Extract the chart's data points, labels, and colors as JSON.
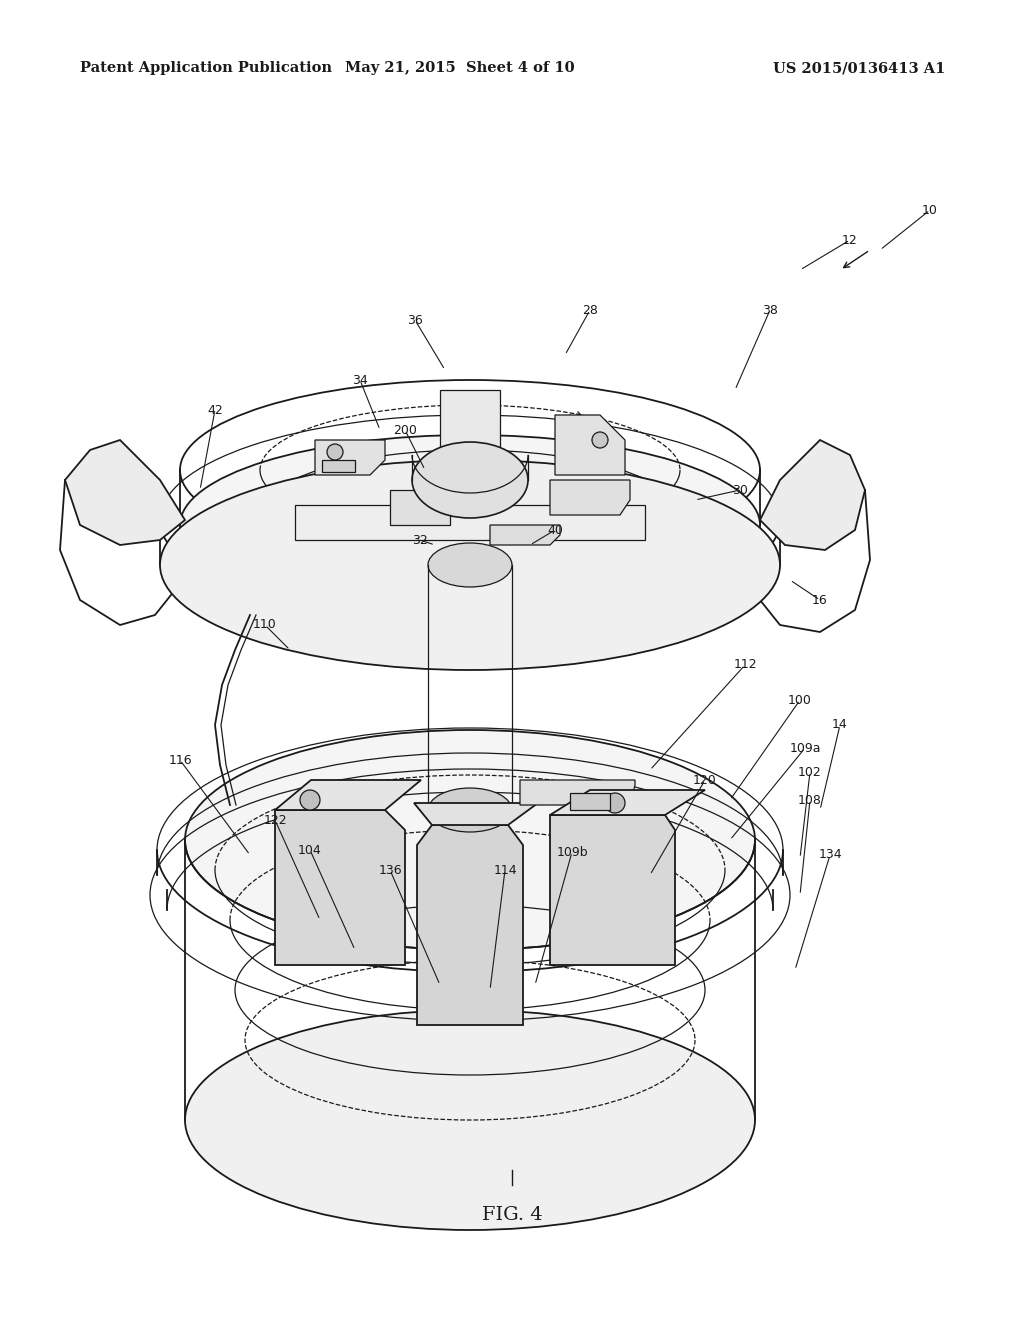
{
  "background_color": "#ffffff",
  "header_left": "Patent Application Publication",
  "header_center": "May 21, 2015  Sheet 4 of 10",
  "header_right": "US 2015/0136413 A1",
  "figure_label": "FIG. 4",
  "header_fontsize": 10.5,
  "fig_label_fontsize": 14,
  "label_fontsize": 9,
  "color": "#1a1a1a"
}
